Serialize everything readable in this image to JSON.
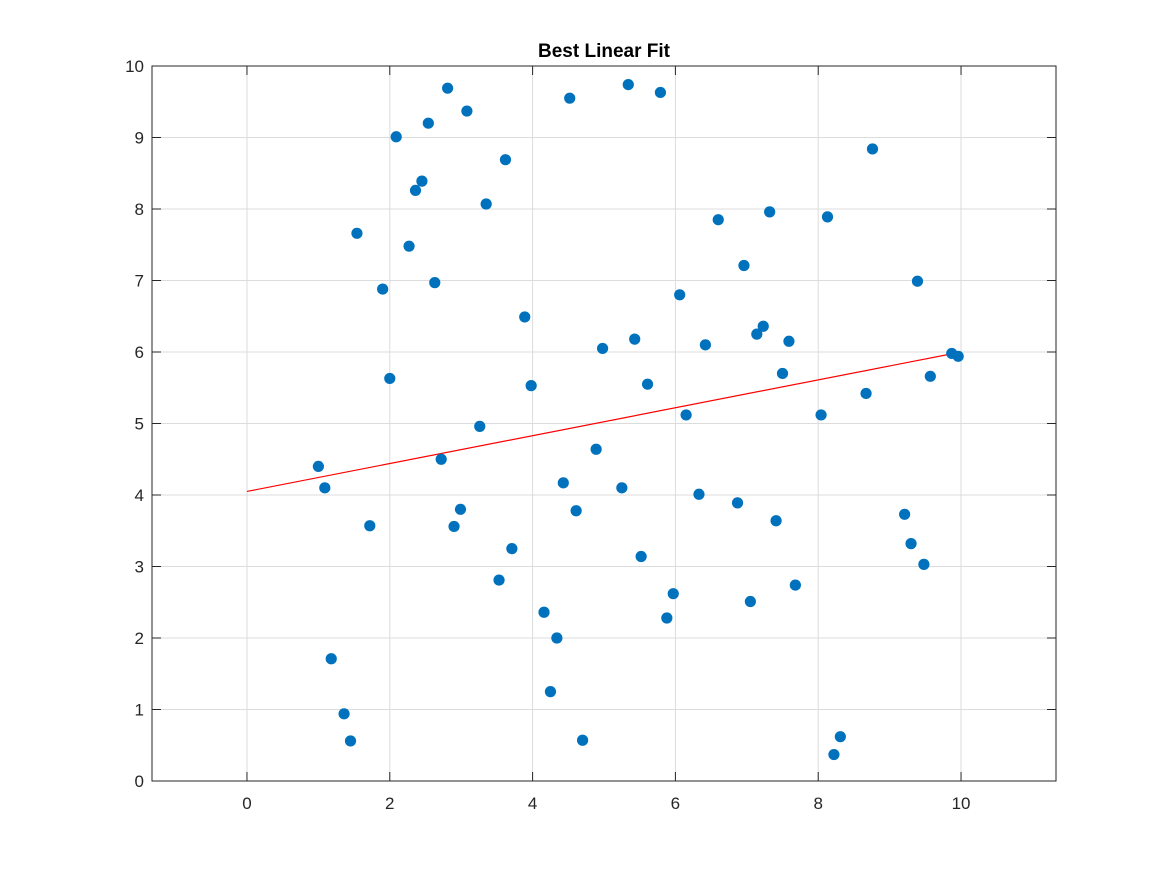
{
  "chart_data": {
    "type": "scatter",
    "title": "Best Linear Fit",
    "xlabel": "",
    "ylabel": "",
    "xlim": [
      -1.33,
      11.33
    ],
    "ylim": [
      0,
      10
    ],
    "x_ticks": [
      "0",
      "2",
      "4",
      "6",
      "8",
      "10"
    ],
    "y_ticks": [
      "0",
      "1",
      "2",
      "3",
      "4",
      "5",
      "6",
      "7",
      "8",
      "9",
      "10"
    ],
    "grid": true,
    "marker_color": "#0072BD",
    "fit_color": "#FF0000",
    "points": [
      [
        1.0,
        4.4
      ],
      [
        1.09,
        4.1
      ],
      [
        1.18,
        1.71
      ],
      [
        1.36,
        0.94
      ],
      [
        1.45,
        0.56
      ],
      [
        1.54,
        7.66
      ],
      [
        1.72,
        3.57
      ],
      [
        1.9,
        6.88
      ],
      [
        2.0,
        5.63
      ],
      [
        2.09,
        9.01
      ],
      [
        2.27,
        7.48
      ],
      [
        2.36,
        8.26
      ],
      [
        2.45,
        8.39
      ],
      [
        2.54,
        9.2
      ],
      [
        2.63,
        6.97
      ],
      [
        2.72,
        4.5
      ],
      [
        2.81,
        9.69
      ],
      [
        2.9,
        3.56
      ],
      [
        2.99,
        3.8
      ],
      [
        3.08,
        9.37
      ],
      [
        3.26,
        4.96
      ],
      [
        3.35,
        8.07
      ],
      [
        3.53,
        2.81
      ],
      [
        3.62,
        8.69
      ],
      [
        3.71,
        3.25
      ],
      [
        3.89,
        6.49
      ],
      [
        3.98,
        5.53
      ],
      [
        4.16,
        2.36
      ],
      [
        4.25,
        1.25
      ],
      [
        4.34,
        2.0
      ],
      [
        4.43,
        4.17
      ],
      [
        4.52,
        9.55
      ],
      [
        4.61,
        3.78
      ],
      [
        4.7,
        0.57
      ],
      [
        4.89,
        4.64
      ],
      [
        4.98,
        6.05
      ],
      [
        5.25,
        4.1
      ],
      [
        5.34,
        9.74
      ],
      [
        5.43,
        6.18
      ],
      [
        5.52,
        3.14
      ],
      [
        5.61,
        5.55
      ],
      [
        5.79,
        9.63
      ],
      [
        5.88,
        2.28
      ],
      [
        5.97,
        2.62
      ],
      [
        6.06,
        6.8
      ],
      [
        6.15,
        5.12
      ],
      [
        6.33,
        4.01
      ],
      [
        6.42,
        6.1
      ],
      [
        6.6,
        7.85
      ],
      [
        6.87,
        3.89
      ],
      [
        6.96,
        7.21
      ],
      [
        7.05,
        2.51
      ],
      [
        7.14,
        6.25
      ],
      [
        7.23,
        6.36
      ],
      [
        7.32,
        7.96
      ],
      [
        7.41,
        3.64
      ],
      [
        7.5,
        5.7
      ],
      [
        7.59,
        6.15
      ],
      [
        7.68,
        2.74
      ],
      [
        8.04,
        5.12
      ],
      [
        8.13,
        7.89
      ],
      [
        8.22,
        0.37
      ],
      [
        8.31,
        0.62
      ],
      [
        8.67,
        5.42
      ],
      [
        8.76,
        8.84
      ],
      [
        9.21,
        3.73
      ],
      [
        9.3,
        3.32
      ],
      [
        9.39,
        6.99
      ],
      [
        9.48,
        3.03
      ],
      [
        9.57,
        5.66
      ],
      [
        9.87,
        5.98
      ],
      [
        9.96,
        5.94
      ]
    ],
    "fit_line": {
      "x": [
        0,
        10
      ],
      "y": [
        4.05,
        6.0
      ]
    }
  }
}
